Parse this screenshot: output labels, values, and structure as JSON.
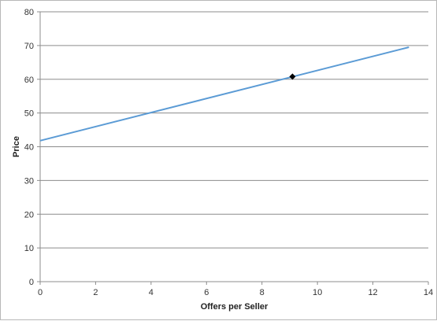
{
  "chart_data": {
    "type": "line",
    "title": "",
    "xlabel": "Offers per Seller",
    "ylabel": "Price",
    "xlim": [
      0,
      14
    ],
    "ylim": [
      0,
      80
    ],
    "x_ticks": [
      0,
      2,
      4,
      6,
      8,
      10,
      12,
      14
    ],
    "y_ticks": [
      0,
      10,
      20,
      30,
      40,
      50,
      60,
      70,
      80
    ],
    "grid": {
      "horizontal": true,
      "vertical": false
    },
    "legend": "none",
    "series": [
      {
        "type": "line",
        "color": "#5b9bd5",
        "x": [
          0,
          13.3
        ],
        "y": [
          41.8,
          69.5
        ]
      },
      {
        "type": "scatter",
        "marker": "diamond",
        "color": "#000000",
        "x": [
          9.1
        ],
        "y": [
          60.8
        ]
      }
    ]
  }
}
